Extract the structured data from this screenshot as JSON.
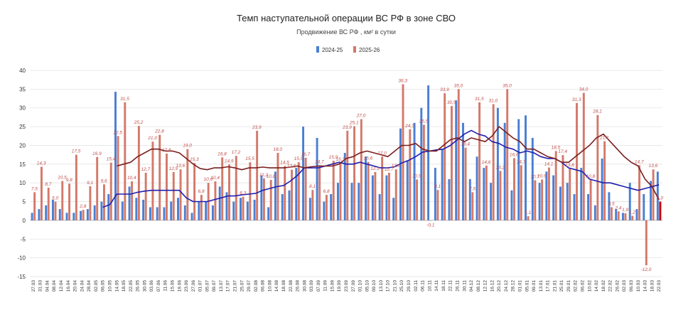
{
  "chart_data": {
    "type": "bar",
    "title": "Темп наступательной операции ВС РФ в зоне СВО",
    "subtitle": "Продвижение ВС РФ , км² в сутки",
    "ylim": [
      -15,
      40
    ],
    "yticks": [
      -15,
      -10,
      -5,
      0,
      5,
      10,
      15,
      20,
      25,
      30,
      35,
      40
    ],
    "grid": true,
    "legend": "top-center",
    "colors": {
      "series_2024": "#4a7fd4",
      "series_2025": "#d4796a",
      "avg_2024": "#1f1fb0",
      "avg_2025": "#7a1f1f",
      "last_bar": "#cc0000",
      "label": "#c0504d"
    },
    "categories": [
      "27.03",
      "31.03",
      "04.04",
      "08.04",
      "12.04",
      "16.04",
      "20.04",
      "24.04",
      "28.04",
      "02.05",
      "06.05",
      "10.05",
      "14.05",
      "18.05",
      "22.05",
      "26.05",
      "30.05",
      "03.06",
      "07.06",
      "11.06",
      "15.06",
      "19.06",
      "23.06",
      "27.06",
      "01.07",
      "05.07",
      "09.07",
      "13.07",
      "17.07",
      "21.07",
      "25.07",
      "29.07",
      "02.08",
      "06.08",
      "10.08",
      "14.08",
      "18.08",
      "22.08",
      "26.08",
      "30.08",
      "03.09",
      "07.09",
      "11.09",
      "15.09",
      "19.09",
      "23.09",
      "27.09",
      "01.10",
      "05.10",
      "09.10",
      "13.10",
      "17.10",
      "21.10",
      "25.10",
      "29.10",
      "02.11",
      "06.11",
      "10.11",
      "14.11",
      "18.11",
      "22.11",
      "26.11",
      "30.11",
      "04.12",
      "08.12",
      "12.12",
      "16.12",
      "20.12",
      "24.12",
      "28.12",
      "01.01",
      "05.01",
      "09.01",
      "13.01",
      "17.01",
      "21.01",
      "25.01",
      "29.01",
      "02.02",
      "06.02",
      "10.02",
      "14.02",
      "18.02",
      "22.02",
      "26.02",
      "02.03",
      "06.03",
      "10.03",
      "14.03",
      "18.03",
      "22.03"
    ],
    "series": [
      {
        "name": "2024-25",
        "type": "bar",
        "values": [
          2.0,
          3.0,
          4.0,
          5.5,
          3.0,
          2.0,
          2.0,
          2.5,
          3.0,
          4.0,
          5.0,
          7.0,
          34.3,
          5.0,
          9.0,
          6.0,
          5.5,
          3.5,
          3.5,
          3.5,
          5.0,
          6.0,
          4.0,
          2.0,
          5.0,
          5.0,
          4.0,
          9.0,
          7.5,
          5.0,
          6.0,
          5.0,
          5.5,
          12.0,
          3.5,
          13.0,
          7.0,
          8.0,
          14.0,
          25.0,
          6.0,
          22.0,
          5.0,
          7.0,
          10.0,
          18.0,
          10.0,
          10.0,
          17.0,
          12.0,
          7.0,
          12.0,
          6.0,
          24.5,
          16.0,
          26.0,
          30.0,
          36.0,
          14.0,
          19.0,
          11.0,
          32.0,
          26.0,
          11.0,
          17.0,
          14.0,
          10.0,
          30.0,
          26.0,
          8.0,
          27.0,
          28.0,
          22.0,
          10.0,
          13.0,
          12.0,
          9.0,
          10.0,
          7.0,
          14.0,
          7.0,
          4.0,
          16.5,
          7.5,
          3.0,
          2.0,
          10.0,
          3.0,
          7.0,
          10.5,
          13.0
        ]
      },
      {
        "name": "2025-26",
        "type": "bar",
        "values": [
          7.5,
          14.3,
          8.7,
          5.0,
          10.5,
          9.8,
          17.5,
          2.8,
          9.1,
          16.9,
          9.6,
          15.4,
          22.5,
          31.5,
          10.4,
          25.2,
          12.7,
          21.0,
          22.8,
          17.8,
          12.9,
          13.6,
          19.0,
          15.3,
          6.8,
          10.0,
          10.4,
          16.8,
          14.9,
          17.2,
          6.3,
          15.5,
          23.9,
          11.2,
          10.8,
          18.0,
          14.5,
          13.5,
          15.5,
          16.7,
          8.1,
          14.7,
          6.8,
          15.9,
          15.3,
          23.9,
          25.1,
          27.0,
          15.6,
          12.9,
          17.0,
          12.7,
          13.6,
          36.3,
          24.3,
          10.9,
          25.5,
          -0.1,
          8.1,
          33.9,
          30.5,
          35.0,
          19.4,
          7.5,
          31.5,
          14.6,
          31.0,
          13.2,
          35.0,
          16.6,
          14.7,
          1.1,
          10.7,
          10.9,
          14.1,
          18.5,
          17.4,
          13.8,
          31.3,
          34.0,
          10.8,
          28.1,
          21.1,
          3.5,
          2.4,
          1.9,
          1.2,
          14.7,
          -12.0,
          13.6,
          5.0
        ]
      },
      {
        "name": "",
        "type": "line",
        "values": [
          null,
          null,
          null,
          null,
          null,
          null,
          null,
          null,
          null,
          null,
          3.5,
          4.2,
          7.0,
          7.0,
          7.0,
          7.5,
          7.8,
          8.0,
          8.0,
          8.0,
          8.0,
          8.0,
          6.0,
          5.0,
          5.0,
          5.0,
          5.5,
          6.0,
          6.5,
          6.5,
          6.8,
          7.0,
          7.2,
          8.0,
          8.5,
          9.0,
          9.3,
          10.5,
          12.0,
          14.0,
          14.0,
          14.0,
          14.5,
          15.0,
          15.5,
          15.0,
          15.0,
          15.5,
          15.0,
          14.5,
          14.0,
          14.0,
          14.3,
          15.3,
          16.0,
          17.0,
          18.2,
          18.5,
          18.8,
          19.0,
          20.0,
          21.5,
          23.0,
          24.0,
          23.0,
          22.5,
          21.0,
          20.5,
          19.5,
          19.0,
          18.0,
          18.5,
          18.0,
          17.0,
          16.5,
          16.5,
          15.5,
          14.0,
          13.5,
          13.0,
          11.0,
          10.5,
          10.0,
          10.0,
          9.5,
          9.0,
          8.5,
          8.0,
          8.5,
          9.0,
          9.5
        ]
      },
      {
        "name": "",
        "type": "line",
        "values": [
          null,
          null,
          null,
          null,
          null,
          null,
          null,
          null,
          null,
          null,
          null,
          null,
          14.5,
          15.0,
          15.5,
          17.0,
          18.0,
          19.0,
          19.0,
          18.5,
          18.5,
          18.0,
          16.5,
          15.0,
          13.8,
          13.5,
          14.0,
          14.0,
          14.3,
          14.0,
          13.5,
          14.0,
          14.0,
          14.2,
          14.0,
          14.0,
          14.0,
          14.2,
          14.5,
          14.0,
          14.3,
          14.5,
          14.5,
          14.5,
          15.0,
          16.5,
          17.0,
          18.0,
          18.5,
          18.0,
          17.5,
          17.0,
          18.5,
          20.0,
          20.0,
          20.5,
          19.0,
          18.5,
          18.5,
          20.0,
          21.5,
          22.0,
          21.0,
          22.0,
          21.5,
          21.0,
          22.5,
          25.0,
          23.5,
          22.0,
          21.0,
          19.0,
          19.0,
          18.0,
          17.0,
          16.5,
          15.5,
          15.5,
          17.0,
          18.5,
          20.0,
          22.0,
          23.0,
          21.0,
          19.0,
          17.0,
          15.5,
          14.5,
          11.0,
          9.0,
          5.5
        ]
      }
    ]
  }
}
